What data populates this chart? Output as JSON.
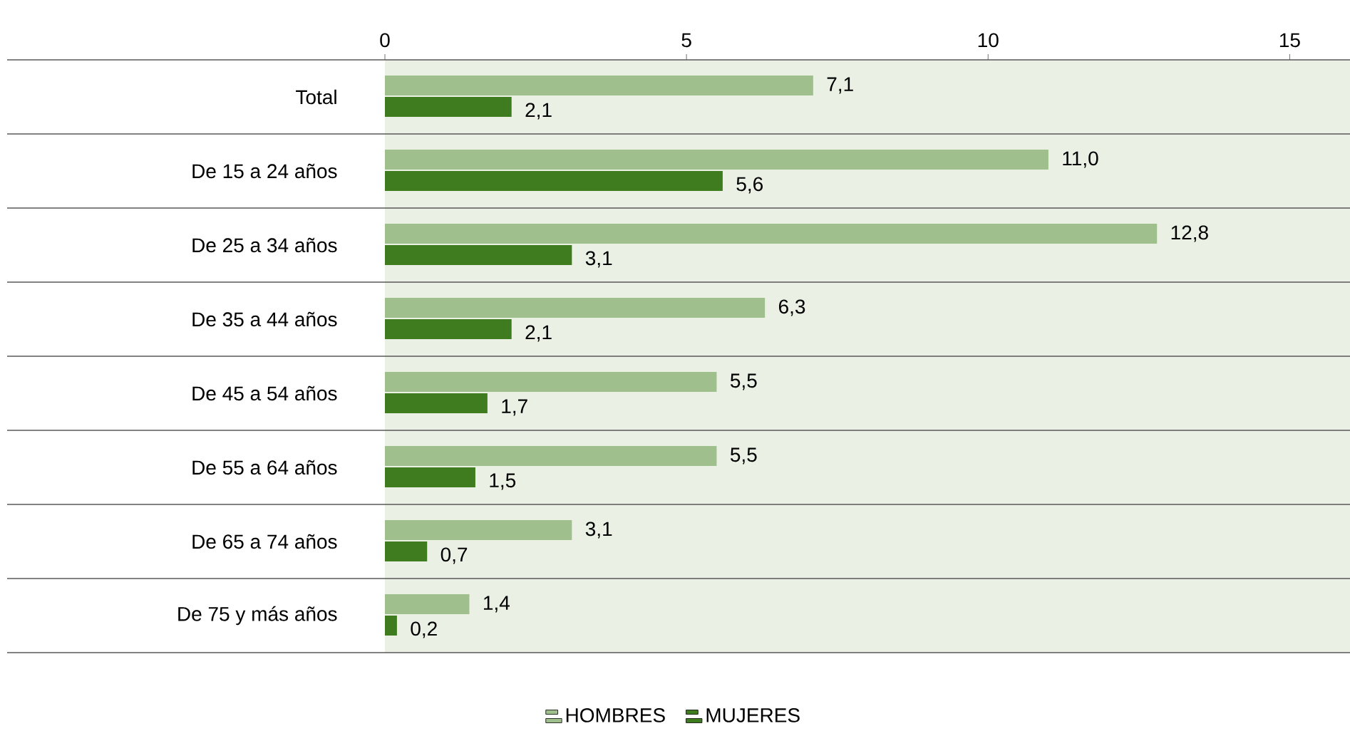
{
  "chart_data": {
    "type": "bar",
    "orientation": "horizontal",
    "categories": [
      "Total",
      "De 15 a 24 años",
      "De 25 a 34 años",
      "De 35 a 44 años",
      "De 45 a 54 años",
      "De 55 a 64 años",
      "De 65 a 74 años",
      "De 75 y más años"
    ],
    "series": [
      {
        "name": "HOMBRES",
        "color": "#9fbf8c",
        "values": [
          7.1,
          11.0,
          12.8,
          6.3,
          5.5,
          5.5,
          3.1,
          1.4
        ],
        "value_labels": [
          "7,1",
          "11,0",
          "12,8",
          "6,3",
          "5,5",
          "5,5",
          "3,1",
          "1,4"
        ]
      },
      {
        "name": "MUJERES",
        "color": "#3f7b1f",
        "values": [
          2.1,
          5.6,
          3.1,
          2.1,
          1.7,
          1.5,
          0.7,
          0.2
        ],
        "value_labels": [
          "2,1",
          "5,6",
          "3,1",
          "2,1",
          "1,7",
          "1,5",
          "0,7",
          "0,2"
        ]
      }
    ],
    "xlim": [
      0,
      16
    ],
    "xticks": [
      0,
      5,
      10,
      15
    ],
    "legend": "bottom",
    "grid": false
  }
}
